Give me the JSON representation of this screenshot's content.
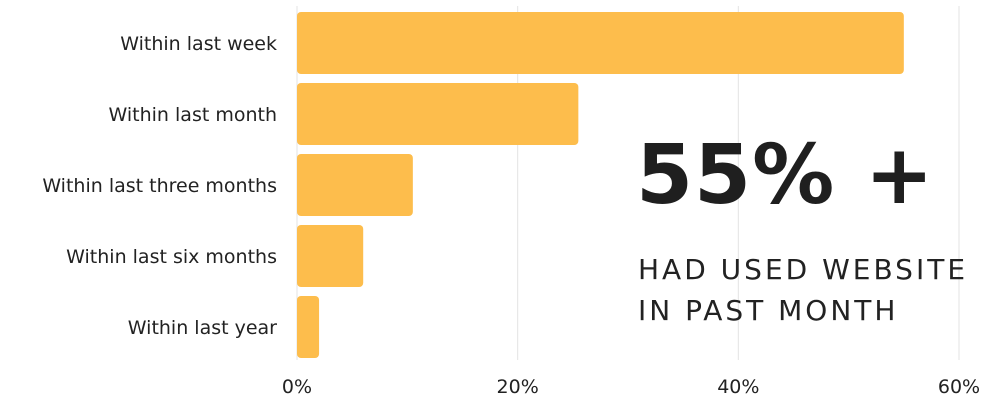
{
  "chart_data": {
    "type": "bar",
    "orientation": "horizontal",
    "categories": [
      "Within last week",
      "Within last month",
      "Within last three months",
      "Within last six months",
      "Within last year"
    ],
    "values": [
      55,
      25.5,
      10.5,
      6,
      2
    ],
    "x_ticks": [
      "0%",
      "20%",
      "40%",
      "60%"
    ],
    "xlim": [
      0,
      60
    ],
    "grid": "vertical",
    "bar_color": "#FDBD4C"
  },
  "callout": {
    "headline": "55% +",
    "line1": "HAD USED WEBSITE",
    "line2": "IN PAST MONTH"
  }
}
